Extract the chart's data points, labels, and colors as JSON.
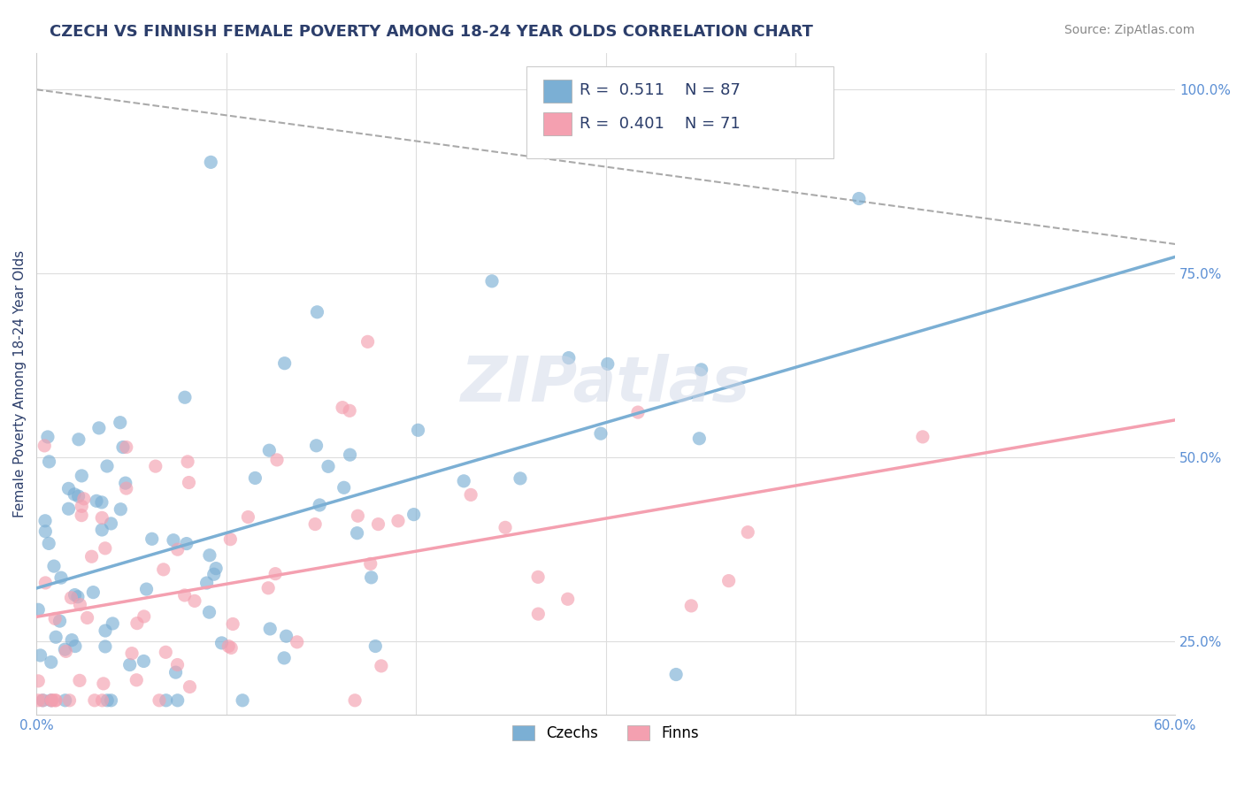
{
  "title": "CZECH VS FINNISH FEMALE POVERTY AMONG 18-24 YEAR OLDS CORRELATION CHART",
  "source_text": "Source: ZipAtlas.com",
  "xlabel": "",
  "ylabel": "Female Poverty Among 18-24 Year Olds",
  "xlim": [
    0.0,
    0.6
  ],
  "ylim": [
    0.15,
    1.05
  ],
  "xticks": [
    0.0,
    0.1,
    0.2,
    0.3,
    0.4,
    0.5,
    0.6
  ],
  "xticklabels": [
    "0.0%",
    "",
    "",
    "",
    "",
    "",
    "60.0%"
  ],
  "yticks": [
    0.25,
    0.5,
    0.75,
    1.0
  ],
  "yticklabels": [
    "25.0%",
    "50.0%",
    "75.0%",
    "100.0%"
  ],
  "czech_color": "#7bafd4",
  "finn_color": "#f4a0b0",
  "czech_R": 0.511,
  "czech_N": 87,
  "finn_R": 0.401,
  "finn_N": 71,
  "watermark": "ZIPatlas",
  "legend_czechs": "Czechs",
  "legend_finns": "Finns",
  "czech_seed": 42,
  "finn_seed": 99,
  "background_color": "#ffffff",
  "grid_color": "#dddddd",
  "title_color": "#2c3e6b",
  "axis_label_color": "#2c3e6b",
  "tick_color": "#5b8fd4",
  "source_color": "#888888"
}
